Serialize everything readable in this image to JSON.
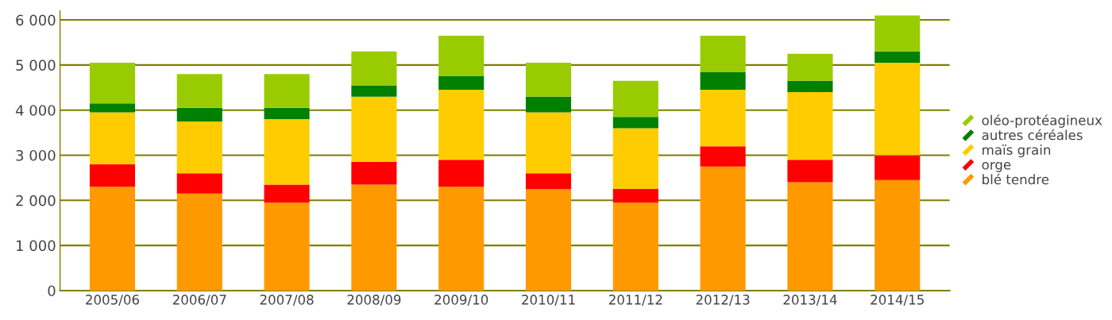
{
  "chart_data": {
    "type": "bar",
    "stacked": true,
    "categories": [
      "2005/06",
      "2006/07",
      "2007/08",
      "2008/09",
      "2009/10",
      "2010/11",
      "2011/12",
      "2012/13",
      "2013/14",
      "2014/15"
    ],
    "series": [
      {
        "name": "blé tendre",
        "color": "#ff9900",
        "values": [
          2300,
          2150,
          1950,
          2350,
          2300,
          2250,
          1950,
          2750,
          2400,
          2450
        ]
      },
      {
        "name": "orge",
        "color": "#ff0000",
        "values": [
          500,
          450,
          400,
          500,
          600,
          350,
          300,
          450,
          500,
          550
        ]
      },
      {
        "name": "maïs grain",
        "color": "#ffcc00",
        "values": [
          1150,
          1150,
          1450,
          1450,
          1550,
          1350,
          1350,
          1250,
          1500,
          2050
        ]
      },
      {
        "name": "autres céréales",
        "color": "#008000",
        "values": [
          200,
          300,
          250,
          250,
          300,
          350,
          250,
          400,
          250,
          250
        ]
      },
      {
        "name": "oléo-protéagineux",
        "color": "#99cc00",
        "values": [
          900,
          750,
          750,
          750,
          900,
          750,
          800,
          800,
          600,
          800
        ]
      }
    ],
    "ylim": [
      0,
      6200
    ],
    "yticks": [
      {
        "value": 0,
        "label": "0"
      },
      {
        "value": 1000,
        "label": "1 000"
      },
      {
        "value": 2000,
        "label": "2 000"
      },
      {
        "value": 3000,
        "label": "3 000"
      },
      {
        "value": 4000,
        "label": "4 000"
      },
      {
        "value": 5000,
        "label": "5 000"
      },
      {
        "value": 6000,
        "label": "6 000"
      }
    ],
    "grid": "y",
    "legend": "right"
  }
}
